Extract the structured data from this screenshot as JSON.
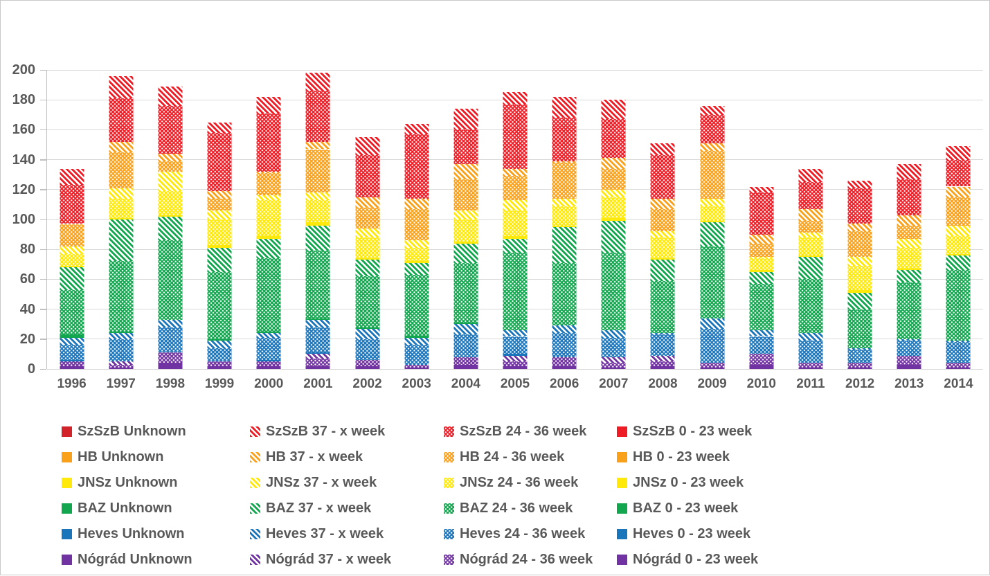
{
  "chart_data": {
    "type": "bar",
    "stacked": true,
    "title": "",
    "xlabel": "",
    "ylabel": "",
    "grid": true,
    "legend_position": "bottom-left",
    "categories": [
      "1996",
      "1997",
      "1998",
      "1999",
      "2000",
      "2001",
      "2002",
      "2003",
      "2004",
      "2005",
      "2006",
      "2007",
      "2008",
      "2009",
      "2010",
      "2011",
      "2012",
      "2013",
      "2014"
    ],
    "y_axis": {
      "min": 0,
      "max": 200,
      "step": 20,
      "ticks": [
        "0",
        "20",
        "40",
        "60",
        "80",
        "100",
        "120",
        "140",
        "160",
        "180",
        "200"
      ]
    },
    "counties": [
      {
        "name": "SzSzB",
        "color": "#ee1c25",
        "unknown_color": "#d2232a"
      },
      {
        "name": "HB",
        "color": "#f9a11b",
        "unknown_color": "#f9a11b"
      },
      {
        "name": "JNSz",
        "color": "#ffe90b",
        "unknown_color": "#ffe90b"
      },
      {
        "name": "BAZ",
        "color": "#12a64f",
        "unknown_color": "#12a64f"
      },
      {
        "name": "Heves",
        "color": "#1b75bb",
        "unknown_color": "#1b75bb"
      },
      {
        "name": "Nógrád",
        "color": "#7233a2",
        "unknown_color": "#7233a2"
      }
    ],
    "variants": [
      {
        "key": "unknown",
        "label": "Unknown",
        "pattern": "solid-dark"
      },
      {
        "key": "w37",
        "label": "37 - x week",
        "pattern": "hatch"
      },
      {
        "key": "w24",
        "label": "24 - 36 week",
        "pattern": "dots"
      },
      {
        "key": "w0",
        "label": "0 - 23 week",
        "pattern": "solid"
      }
    ],
    "stack_counties_bottom_to_top": [
      "Nógrád",
      "Heves",
      "BAZ",
      "JNSz",
      "HB",
      "SzSzB"
    ],
    "stack_variants_bottom_to_top": [
      "w0",
      "w24",
      "w37",
      "unknown"
    ],
    "series": {
      "SzSzB": {
        "unknown": [
          0,
          0,
          0,
          0,
          0,
          0,
          0,
          0,
          0,
          0,
          0,
          0,
          0,
          0,
          0,
          0,
          0,
          0,
          0
        ],
        "w37": [
          11,
          15,
          13,
          7,
          11,
          12,
          12,
          7,
          14,
          8,
          14,
          13,
          8,
          6,
          4,
          9,
          5,
          10,
          9
        ],
        "w24": [
          26,
          29,
          32,
          39,
          39,
          34,
          28,
          43,
          23,
          43,
          29,
          26,
          29,
          19,
          28,
          18,
          24,
          24,
          18
        ],
        "w0": [
          0,
          0,
          0,
          0,
          0,
          0,
          0,
          0,
          0,
          0,
          0,
          0,
          0,
          0,
          0,
          0,
          0,
          0,
          0
        ]
      },
      "HB": {
        "unknown": [
          0,
          0,
          0,
          0,
          0,
          0,
          0,
          0,
          0,
          0,
          0,
          0,
          0,
          0,
          0,
          0,
          0,
          0,
          0
        ],
        "w37": [
          0,
          7,
          5,
          5,
          1,
          5,
          7,
          7,
          10,
          5,
          1,
          7,
          7,
          5,
          6,
          8,
          5,
          7,
          7
        ],
        "w24": [
          15,
          24,
          7,
          8,
          15,
          29,
          14,
          21,
          21,
          16,
          24,
          14,
          15,
          32,
          9,
          8,
          17,
          9,
          19
        ],
        "w0": [
          0,
          0,
          0,
          0,
          0,
          0,
          0,
          0,
          0,
          0,
          0,
          0,
          0,
          0,
          0,
          0,
          0,
          0,
          0
        ]
      },
      "JNSz": {
        "unknown": [
          0,
          0,
          0,
          0,
          0,
          0,
          0,
          0,
          0,
          0,
          0,
          0,
          0,
          0,
          0,
          0,
          0,
          0,
          0
        ],
        "w37": [
          5,
          7,
          13,
          6,
          3,
          5,
          6,
          5,
          6,
          7,
          5,
          5,
          4,
          5,
          1,
          3,
          6,
          6,
          7
        ],
        "w24": [
          8,
          13,
          16,
          17,
          24,
          15,
          14,
          9,
          15,
          17,
          13,
          14,
          14,
          10,
          8,
          12,
          16,
          14,
          12
        ],
        "w0": [
          1,
          1,
          1,
          2,
          2,
          2,
          1,
          1,
          1,
          2,
          1,
          2,
          1,
          1,
          1,
          1,
          2,
          1,
          1
        ]
      },
      "BAZ": {
        "unknown": [
          0,
          0,
          0,
          0,
          0,
          0,
          0,
          0,
          0,
          0,
          0,
          0,
          0,
          0,
          0,
          0,
          0,
          0,
          0
        ],
        "w37": [
          15,
          28,
          16,
          16,
          13,
          17,
          11,
          8,
          13,
          9,
          24,
          21,
          14,
          16,
          8,
          15,
          11,
          8,
          10
        ],
        "w24": [
          30,
          47,
          53,
          45,
          49,
          45,
          34,
          41,
          40,
          52,
          42,
          52,
          35,
          48,
          31,
          36,
          26,
          38,
          47
        ],
        "w0": [
          2,
          1,
          0,
          1,
          1,
          1,
          1,
          1,
          1,
          0,
          0,
          0,
          0,
          0,
          0,
          0,
          0,
          0,
          0
        ]
      },
      "Heves": {
        "unknown": [
          0,
          0,
          0,
          0,
          0,
          0,
          0,
          0,
          0,
          0,
          0,
          0,
          0,
          0,
          0,
          0,
          0,
          0,
          0
        ],
        "w37": [
          5,
          4,
          5,
          5,
          3,
          5,
          7,
          5,
          7,
          4,
          5,
          5,
          1,
          7,
          4,
          5,
          1,
          1,
          1
        ],
        "w24": [
          10,
          15,
          17,
          9,
          15,
          17,
          14,
          13,
          15,
          12,
          16,
          13,
          14,
          23,
          12,
          15,
          9,
          10,
          14
        ],
        "w0": [
          1,
          0,
          0,
          0,
          1,
          1,
          0,
          0,
          0,
          1,
          0,
          0,
          0,
          0,
          0,
          0,
          0,
          0,
          0
        ]
      },
      "Nógrád": {
        "unknown": [
          0,
          0,
          0,
          0,
          0,
          0,
          0,
          0,
          0,
          0,
          0,
          0,
          0,
          0,
          0,
          0,
          0,
          0,
          0
        ],
        "w37": [
          0,
          2,
          0,
          0,
          0,
          3,
          0,
          0,
          0,
          4,
          0,
          4,
          4,
          0,
          0,
          0,
          0,
          0,
          0
        ],
        "w24": [
          3,
          2,
          7,
          3,
          3,
          5,
          4,
          2,
          5,
          3,
          6,
          3,
          3,
          3,
          7,
          3,
          3,
          6,
          3
        ],
        "w0": [
          2,
          1,
          4,
          2,
          2,
          2,
          2,
          1,
          3,
          2,
          2,
          1,
          2,
          1,
          3,
          1,
          1,
          3,
          1
        ]
      }
    }
  },
  "legend": {
    "items": [
      {
        "label": "SzSzB Unknown",
        "county": "SzSzB",
        "variant": "unknown"
      },
      {
        "label": "SzSzB 37 - x week",
        "county": "SzSzB",
        "variant": "w37"
      },
      {
        "label": "SzSzB 24 - 36 week",
        "county": "SzSzB",
        "variant": "w24"
      },
      {
        "label": "SzSzB 0 - 23 week",
        "county": "SzSzB",
        "variant": "w0"
      },
      {
        "label": "HB Unknown",
        "county": "HB",
        "variant": "unknown"
      },
      {
        "label": "HB 37 - x week",
        "county": "HB",
        "variant": "w37"
      },
      {
        "label": "HB 24 - 36 week",
        "county": "HB",
        "variant": "w24"
      },
      {
        "label": "HB 0 - 23 week",
        "county": "HB",
        "variant": "w0"
      },
      {
        "label": "JNSz Unknown",
        "county": "JNSz",
        "variant": "unknown"
      },
      {
        "label": "JNSz 37 - x week",
        "county": "JNSz",
        "variant": "w37"
      },
      {
        "label": "JNSz 24 - 36 week",
        "county": "JNSz",
        "variant": "w24"
      },
      {
        "label": "JNSz 0 - 23 week",
        "county": "JNSz",
        "variant": "w0"
      },
      {
        "label": "BAZ Unknown",
        "county": "BAZ",
        "variant": "unknown"
      },
      {
        "label": "BAZ 37 - x week",
        "county": "BAZ",
        "variant": "w37"
      },
      {
        "label": "BAZ 24 - 36 week",
        "county": "BAZ",
        "variant": "w24"
      },
      {
        "label": "BAZ 0 - 23 week",
        "county": "BAZ",
        "variant": "w0"
      },
      {
        "label": "Heves Unknown",
        "county": "Heves",
        "variant": "unknown"
      },
      {
        "label": "Heves 37 - x week",
        "county": "Heves",
        "variant": "w37"
      },
      {
        "label": "Heves 24 - 36 week",
        "county": "Heves",
        "variant": "w24"
      },
      {
        "label": "Heves 0 - 23 week",
        "county": "Heves",
        "variant": "w0"
      },
      {
        "label": "Nógrád Unknown",
        "county": "Nógrád",
        "variant": "unknown"
      },
      {
        "label": "Nógrád 37 - x week",
        "county": "Nógrád",
        "variant": "w37"
      },
      {
        "label": "Nógrád 24 - 36 week",
        "county": "Nógrád",
        "variant": "w24"
      },
      {
        "label": "Nógrád 0 - 23 week",
        "county": "Nógrád",
        "variant": "w0"
      }
    ]
  }
}
